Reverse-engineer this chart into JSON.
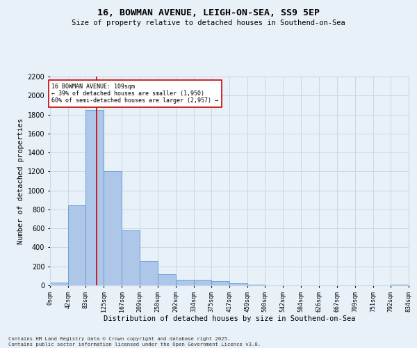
{
  "title1": "16, BOWMAN AVENUE, LEIGH-ON-SEA, SS9 5EP",
  "title2": "Size of property relative to detached houses in Southend-on-Sea",
  "xlabel": "Distribution of detached houses by size in Southend-on-Sea",
  "ylabel": "Number of detached properties",
  "bin_edges": [
    0,
    42,
    83,
    125,
    167,
    209,
    250,
    292,
    334,
    375,
    417,
    459,
    500,
    542,
    584,
    626,
    667,
    709,
    751,
    792,
    834
  ],
  "bar_heights": [
    30,
    840,
    1850,
    1200,
    580,
    260,
    120,
    62,
    62,
    42,
    22,
    8,
    2,
    0,
    0,
    0,
    0,
    0,
    0,
    5
  ],
  "bar_color": "#aec6e8",
  "bar_edge_color": "#5b9bd5",
  "grid_color": "#c8d8e8",
  "bg_color": "#e8f0f8",
  "vline_x": 109,
  "vline_color": "#cc0000",
  "annotation_text": "16 BOWMAN AVENUE: 109sqm\n← 39% of detached houses are smaller (1,950)\n60% of semi-detached houses are larger (2,957) →",
  "annotation_box_color": "#ffffff",
  "annotation_box_edge": "#cc0000",
  "ylim": [
    0,
    2200
  ],
  "yticks": [
    0,
    200,
    400,
    600,
    800,
    1000,
    1200,
    1400,
    1600,
    1800,
    2000,
    2200
  ],
  "footer_text": "Contains HM Land Registry data © Crown copyright and database right 2025.\nContains public sector information licensed under the Open Government Licence v3.0.",
  "tick_labels": [
    "0sqm",
    "42sqm",
    "83sqm",
    "125sqm",
    "167sqm",
    "209sqm",
    "250sqm",
    "292sqm",
    "334sqm",
    "375sqm",
    "417sqm",
    "459sqm",
    "500sqm",
    "542sqm",
    "584sqm",
    "626sqm",
    "667sqm",
    "709sqm",
    "751sqm",
    "792sqm",
    "834sqm"
  ]
}
